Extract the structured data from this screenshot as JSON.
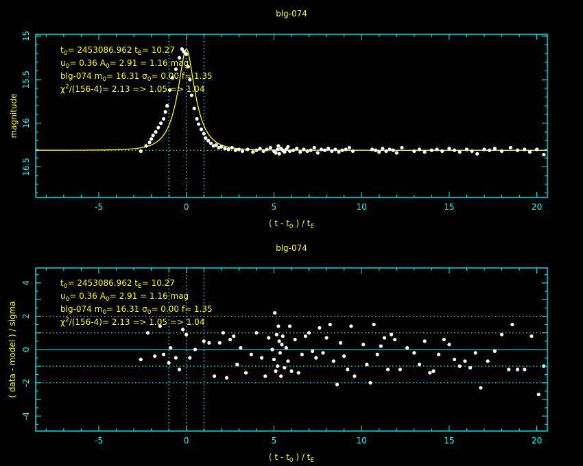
{
  "colors": {
    "background": "#000000",
    "axes": "#00ffff",
    "text": "#ffff00",
    "model": "#ffff00",
    "points": "#ffffff"
  },
  "chart_data": [
    {
      "type": "scatter",
      "title": "blg-074",
      "xlabel": "( t - t₀ ) / tE",
      "ylabel": "magnitude",
      "xlim": [
        -8.6,
        20.6
      ],
      "ylim": [
        16.85,
        14.98
      ],
      "y_inverted": true,
      "xticks": [
        "-5",
        "0",
        "5",
        "10",
        "15",
        "20"
      ],
      "yticks": [
        "15",
        "15.5",
        "16",
        "16.5"
      ],
      "ytick_values": [
        15,
        15.5,
        16,
        16.5
      ],
      "vlines": [
        -1,
        0,
        1
      ],
      "hlines": [
        16.31
      ],
      "model": {
        "type": "pspl",
        "t0": 0,
        "u0": 0.36,
        "m_base": 16.31
      },
      "annotation": [
        "t0= 2453086.962 tE= 10.27",
        "u0= 0.36 A0= 2.91 = 1.16 mag",
        "blg-074 m0= 16.31 σ0= 0.00 f= 1.35",
        "χ²/(156-4)= 2.13 => 1.05 => 1.04"
      ],
      "series": [
        {
          "x": [
            -2.6,
            -2.3,
            -2.1,
            -2.0,
            -1.9,
            -1.75,
            -1.6,
            -1.45,
            -1.3,
            -1.2,
            -1.1,
            -0.95,
            -0.8,
            -0.6,
            -0.4,
            -0.25,
            -0.15,
            -0.05,
            0.0,
            0.1,
            0.2,
            0.3,
            0.45,
            0.6,
            0.7,
            0.85,
            1.0,
            1.1,
            1.25,
            1.4,
            1.55,
            1.7,
            1.85,
            2.0,
            2.2,
            2.4,
            2.6,
            2.8,
            3.0,
            3.2,
            3.5,
            3.8,
            4.0,
            4.2,
            4.4,
            4.6,
            4.8,
            5.0,
            5.1,
            5.2,
            5.25,
            5.3,
            5.4,
            5.5,
            5.6,
            5.7,
            5.8,
            5.9,
            6.1,
            6.3,
            6.5,
            6.7,
            6.9,
            7.1,
            7.3,
            7.5,
            7.7,
            7.9,
            8.1,
            8.3,
            8.5,
            8.7,
            8.9,
            9.1,
            9.3,
            9.5,
            10.6,
            10.8,
            11.0,
            11.2,
            11.4,
            11.6,
            11.8,
            12.0,
            12.3,
            13.0,
            13.3,
            13.6,
            14.0,
            14.3,
            14.6,
            15.0,
            15.3,
            15.6,
            16.0,
            16.3,
            16.6,
            17.0,
            17.3,
            17.6,
            18.0,
            18.5,
            18.9,
            19.3,
            19.6,
            20.0,
            20.4
          ],
          "y": [
            16.32,
            16.26,
            16.22,
            16.18,
            16.14,
            16.1,
            16.05,
            16.0,
            15.95,
            15.87,
            15.8,
            15.62,
            15.48,
            15.38,
            15.25,
            15.15,
            15.18,
            15.2,
            15.21,
            15.35,
            15.5,
            15.68,
            15.83,
            15.95,
            16.01,
            16.07,
            16.12,
            16.17,
            16.2,
            16.23,
            16.26,
            16.25,
            16.28,
            16.27,
            16.29,
            16.3,
            16.28,
            16.31,
            16.3,
            16.32,
            16.3,
            16.33,
            16.31,
            16.29,
            16.32,
            16.3,
            16.28,
            16.32,
            16.34,
            16.3,
            16.26,
            16.35,
            16.29,
            16.31,
            16.33,
            16.3,
            16.27,
            16.32,
            16.31,
            16.29,
            16.33,
            16.3,
            16.32,
            16.31,
            16.28,
            16.34,
            16.3,
            16.31,
            16.29,
            16.32,
            16.3,
            16.33,
            16.31,
            16.3,
            16.28,
            16.32,
            16.3,
            16.31,
            16.33,
            16.29,
            16.32,
            16.3,
            16.31,
            16.34,
            16.28,
            16.32,
            16.3,
            16.33,
            16.31,
            16.3,
            16.32,
            16.29,
            16.31,
            16.33,
            16.3,
            16.32,
            16.35,
            16.3,
            16.31,
            16.29,
            16.32,
            16.28,
            16.31,
            16.3,
            16.33,
            16.3,
            16.36
          ]
        }
      ]
    },
    {
      "type": "scatter",
      "title": "blg-074",
      "xlabel": "( t - t₀ ) / tE",
      "ylabel": "( data - model ) / sigma",
      "xlim": [
        -8.6,
        20.6
      ],
      "ylim": [
        -4.9,
        4.9
      ],
      "xticks": [
        "-5",
        "0",
        "5",
        "10",
        "15",
        "20"
      ],
      "yticks": [
        "4",
        "2",
        "0",
        "-2",
        "-4"
      ],
      "ytick_values": [
        4,
        2,
        0,
        -2,
        -4
      ],
      "vlines": [
        -1,
        0,
        1
      ],
      "hlines_dotted": [
        2,
        1,
        -1,
        -2
      ],
      "hline_solid": 0,
      "annotation": [
        "t0= 2453086.962 tE= 10.27",
        "u0= 0.36 A0= 2.91 = 1.16 mag",
        "blg-074 m0= 16.31 σ0= 0.00 f= 1.35",
        "χ²/(156-4)= 2.13 => 1.05 => 1.04"
      ],
      "series": [
        {
          "x": [
            -2.6,
            -2.2,
            -1.8,
            -1.5,
            -1.3,
            -1.0,
            -0.9,
            -0.6,
            -0.4,
            -0.2,
            0.0,
            0.2,
            0.5,
            1.0,
            1.3,
            1.6,
            1.9,
            2.1,
            2.3,
            2.5,
            2.7,
            2.9,
            3.1,
            3.4,
            3.7,
            4.0,
            4.3,
            4.5,
            4.7,
            4.9,
            5.0,
            5.05,
            5.1,
            5.15,
            5.2,
            5.25,
            5.3,
            5.35,
            5.4,
            5.45,
            5.5,
            5.6,
            5.7,
            5.8,
            5.9,
            6.0,
            6.2,
            6.4,
            6.6,
            6.8,
            7.0,
            7.2,
            7.4,
            7.6,
            7.8,
            8.0,
            8.2,
            8.4,
            8.6,
            8.8,
            9.0,
            9.2,
            9.4,
            9.6,
            10.1,
            10.3,
            10.5,
            10.7,
            10.9,
            11.1,
            11.3,
            11.5,
            11.7,
            11.9,
            12.2,
            12.6,
            13.0,
            13.3,
            13.6,
            13.9,
            14.1,
            14.4,
            14.7,
            15.0,
            15.3,
            15.6,
            15.9,
            16.2,
            16.5,
            16.8,
            17.2,
            17.6,
            18.0,
            18.4,
            18.6,
            18.9,
            19.3,
            19.7,
            20.1,
            20.4
          ],
          "y": [
            -0.6,
            1.0,
            -0.4,
            1.4,
            -0.3,
            -0.8,
            0.1,
            -0.5,
            -1.2,
            1.2,
            0.9,
            -0.5,
            0.0,
            0.5,
            0.4,
            -1.6,
            0.4,
            1.0,
            -1.7,
            0.6,
            0.8,
            -0.9,
            0.1,
            -1.4,
            -0.3,
            1.0,
            -0.5,
            -1.6,
            0.7,
            0.0,
            -0.6,
            2.2,
            -1.3,
            0.9,
            -1.0,
            1.4,
            0.5,
            -0.2,
            -1.6,
            0.3,
            0.8,
            -1.1,
            0.1,
            -0.7,
            1.4,
            -1.3,
            0.6,
            -1.4,
            -0.3,
            0.8,
            1.0,
            -0.1,
            -0.5,
            1.3,
            -0.2,
            0.7,
            1.5,
            -0.7,
            -2.1,
            0.4,
            -0.4,
            -1.2,
            1.4,
            -1.6,
            0.3,
            -0.9,
            -2.0,
            1.5,
            -0.3,
            0.2,
            0.7,
            -1.2,
            0.9,
            0.6,
            -1.2,
            0.1,
            -0.2,
            -0.9,
            0.5,
            -1.4,
            -1.3,
            -0.3,
            0.6,
            0.3,
            -0.6,
            -1.0,
            -0.7,
            -1.1,
            -0.2,
            -2.3,
            -0.7,
            -0.1,
            0.9,
            -1.2,
            1.5,
            -1.2,
            -1.2,
            0.8,
            -2.7,
            -1.0
          ]
        }
      ]
    }
  ]
}
